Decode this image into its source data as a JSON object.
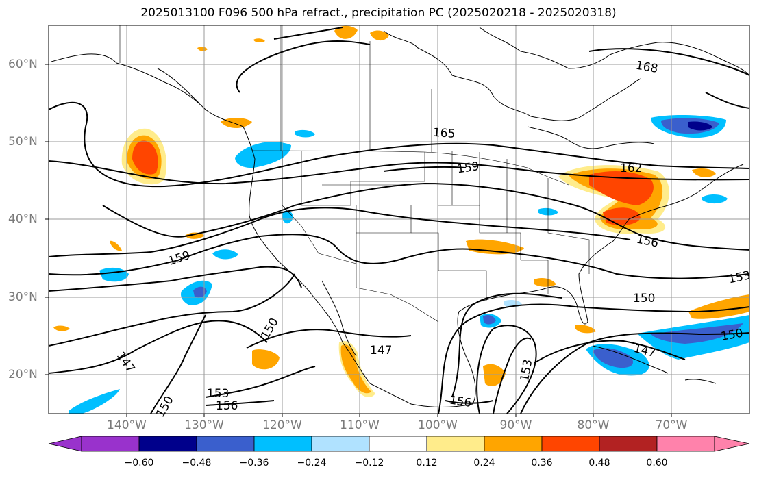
{
  "title": "2025013100 F096 500 hPa refract., precipitation PC (2025020218 - 2025020318)",
  "lat_labels": [
    "60°N",
    "50°N",
    "40°N",
    "30°N",
    "20°N"
  ],
  "lon_labels": [
    "140°W",
    "130°W",
    "120°W",
    "110°W",
    "100°W",
    "90°W",
    "80°W",
    "70°W"
  ],
  "contour_labels": [
    "168",
    "165",
    "162",
    "159",
    "159",
    "156",
    "153",
    "150",
    "150",
    "150",
    "147",
    "147",
    "147",
    "150",
    "153",
    "156",
    "156",
    "153"
  ],
  "colorbar": {
    "tick_labels": [
      "−0.60",
      "−0.48",
      "−0.36",
      "−0.24",
      "−0.12",
      "0.12",
      "0.24",
      "0.36",
      "0.48",
      "0.60"
    ],
    "colors": [
      "#9932cc",
      "#00008b",
      "#3a5fcd",
      "#00bfff",
      "#b0e2ff",
      "#ffffff",
      "#ffec8b",
      "#ffa500",
      "#ff4500",
      "#b22222",
      "#ff82ab"
    ]
  },
  "chart_data": {
    "type": "heatmap",
    "field": "500 hPa refract., precipitation PC",
    "contour_levels": [
      147,
      150,
      153,
      156,
      159,
      162,
      165,
      168
    ],
    "color_levels": [
      -0.6,
      -0.48,
      -0.36,
      -0.24,
      -0.12,
      0.12,
      0.24,
      0.36,
      0.48,
      0.6
    ],
    "lon_range": [
      -150,
      -60
    ],
    "lat_range": [
      15,
      65
    ]
  }
}
